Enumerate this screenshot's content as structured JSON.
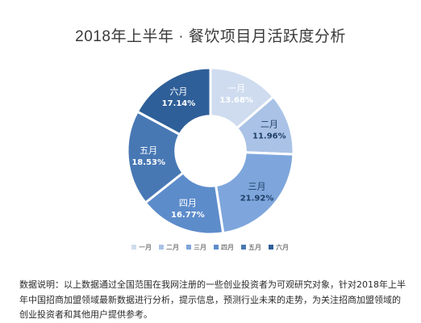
{
  "chart_data": {
    "type": "pie",
    "title": "2018年上半年 · 餐饮项目月活跃度分析",
    "categories": [
      "一月",
      "二月",
      "三月",
      "四月",
      "五月",
      "六月"
    ],
    "values": [
      13.68,
      11.96,
      21.92,
      16.77,
      18.53,
      17.14
    ],
    "value_labels": [
      "13.68%",
      "11.96%",
      "21.92%",
      "16.77%",
      "18.53%",
      "17.14%"
    ],
    "colors": [
      "#cfdcef",
      "#a9c2e6",
      "#7ea6dc",
      "#5d8ccb",
      "#4878b4",
      "#2f5f98"
    ],
    "label_colors": [
      "#ffffff",
      "#1f3f66",
      "#1f3f66",
      "#ffffff",
      "#ffffff",
      "#ffffff"
    ],
    "hole": 0.42,
    "legend_position": "bottom"
  },
  "caption": "数据说明：以上数据通过全国范围在我网注册的一些创业投资者为可观研究对象，针对2018年上半年中国招商加盟领域最新数据进行分析，提示信息，预测行业未来的走势，为关注招商加盟领域的创业投资者和其他用户提供参考。"
}
